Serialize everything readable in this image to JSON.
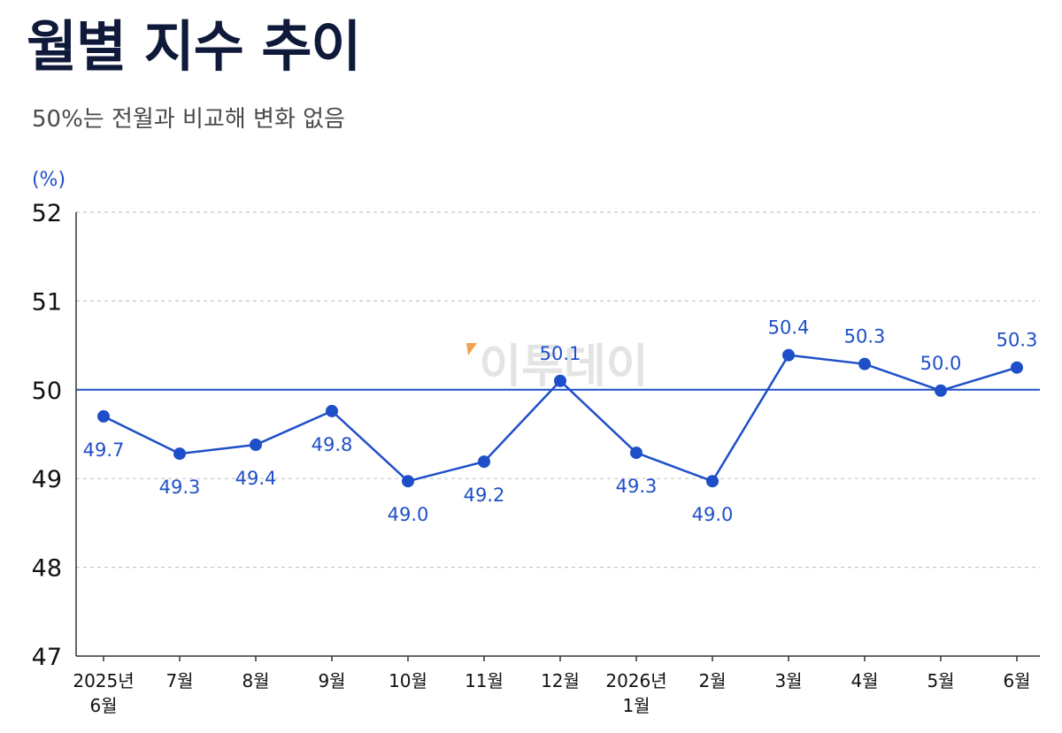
{
  "header": {
    "title": "월별 지수 추이",
    "subtitle": "50%는 전월과 비교해 변화 없음"
  },
  "watermark": "이투데이",
  "colors": {
    "line": "#1f4fc8",
    "reference_line": "#1f4fc8",
    "grid": "#c8c8c8",
    "axis": "#333333",
    "watermark_accent": "#f08a24"
  },
  "chart_data": {
    "type": "line",
    "title": "월별 지수 추이",
    "subtitle": "50%는 전월과 비교해 변화 없음",
    "ylabel": "(%)",
    "xlabel": "",
    "ylim": [
      47,
      52
    ],
    "yticks": [
      47,
      48,
      49,
      50,
      51,
      52
    ],
    "grid": true,
    "reference_line": 50,
    "categories": [
      [
        "2025년",
        "6월"
      ],
      [
        "7월"
      ],
      [
        "8월"
      ],
      [
        "9월"
      ],
      [
        "10월"
      ],
      [
        "11월"
      ],
      [
        "12월"
      ],
      [
        "2026년",
        "1월"
      ],
      [
        "2월"
      ],
      [
        "3월"
      ],
      [
        "4월"
      ],
      [
        "5월"
      ],
      [
        "6월"
      ]
    ],
    "values": [
      49.7,
      49.3,
      49.4,
      49.8,
      49.0,
      49.2,
      50.1,
      49.3,
      49.0,
      50.4,
      50.3,
      50.0,
      50.3
    ],
    "plotted_values": [
      49.7,
      49.28,
      49.38,
      49.76,
      48.97,
      49.19,
      50.1,
      49.29,
      48.97,
      50.39,
      50.29,
      49.99,
      50.25
    ],
    "value_labels": [
      "49.7",
      "49.3",
      "49.4",
      "49.8",
      "49.0",
      "49.2",
      "50.1",
      "49.3",
      "49.0",
      "50.4",
      "50.3",
      "50.0",
      "50.3"
    ],
    "label_positions": [
      "below",
      "below",
      "below",
      "below",
      "below",
      "below",
      "above",
      "below",
      "below",
      "above",
      "above",
      "above",
      "above"
    ]
  }
}
